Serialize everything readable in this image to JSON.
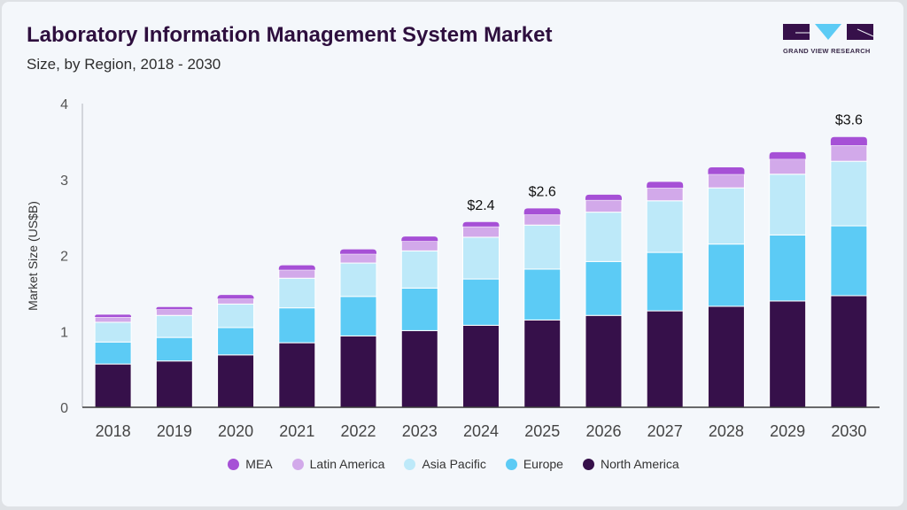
{
  "header": {
    "title": "Laboratory Information Management System Market",
    "subtitle": "Size, by Region, 2018 - 2030"
  },
  "logo": {
    "text": "GRAND VIEW RESEARCH"
  },
  "chart_data": {
    "type": "bar",
    "stacked": true,
    "title": "Laboratory Information Management System Market",
    "subtitle": "Size, by Region, 2018 - 2030",
    "xlabel": "",
    "ylabel": "Market Size (US$B)",
    "ylim": [
      0,
      4
    ],
    "yticks": [
      "0",
      "1",
      "2",
      "3",
      "4"
    ],
    "categories": [
      "2018",
      "2019",
      "2020",
      "2021",
      "2022",
      "2023",
      "2024",
      "2025",
      "2026",
      "2027",
      "2028",
      "2029",
      "2030"
    ],
    "series": [
      {
        "name": "North America",
        "color": "#36104a",
        "values": [
          0.57,
          0.61,
          0.69,
          0.85,
          0.94,
          1.01,
          1.08,
          1.15,
          1.21,
          1.27,
          1.33,
          1.4,
          1.47
        ]
      },
      {
        "name": "Europe",
        "color": "#5ccbf5",
        "values": [
          0.29,
          0.31,
          0.36,
          0.46,
          0.52,
          0.56,
          0.61,
          0.67,
          0.71,
          0.77,
          0.82,
          0.87,
          0.92
        ]
      },
      {
        "name": "Asia Pacific",
        "color": "#bde9f9",
        "values": [
          0.26,
          0.29,
          0.31,
          0.39,
          0.44,
          0.49,
          0.55,
          0.58,
          0.65,
          0.68,
          0.74,
          0.8,
          0.85
        ]
      },
      {
        "name": "Latin America",
        "color": "#d2a9ea",
        "values": [
          0.07,
          0.08,
          0.07,
          0.11,
          0.12,
          0.13,
          0.14,
          0.14,
          0.16,
          0.17,
          0.18,
          0.2,
          0.21
        ]
      },
      {
        "name": "MEA",
        "color": "#a650d6",
        "values": [
          0.03,
          0.03,
          0.05,
          0.06,
          0.06,
          0.06,
          0.06,
          0.08,
          0.07,
          0.08,
          0.09,
          0.09,
          0.11
        ]
      }
    ],
    "annotations": [
      {
        "category": "2024",
        "text": "$2.4"
      },
      {
        "category": "2025",
        "text": "$2.6"
      },
      {
        "category": "2030",
        "text": "$3.6"
      }
    ],
    "legend_position": "bottom",
    "legend_order": [
      "MEA",
      "Latin America",
      "Asia Pacific",
      "Europe",
      "North America"
    ],
    "grid": false
  }
}
